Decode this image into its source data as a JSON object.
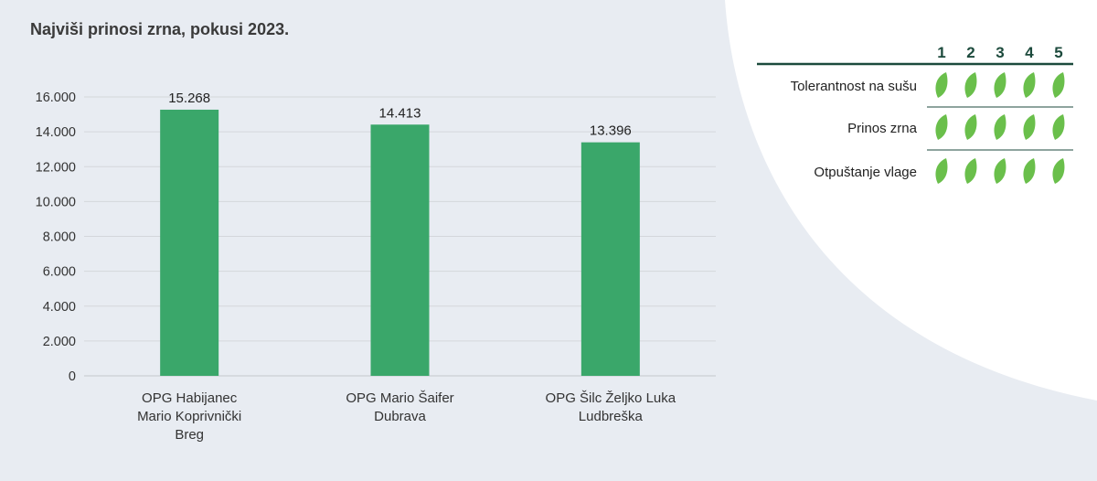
{
  "chart_data": {
    "type": "bar",
    "title": "Najviši prinosi zrna, pokusi 2023.",
    "categories": [
      [
        "OPG Habijanec",
        "Mario Koprivnički",
        "Breg"
      ],
      [
        "OPG Mario Šaifer",
        "Dubrava"
      ],
      [
        "OPG Šilc Željko Luka",
        "Ludbreška"
      ]
    ],
    "values": [
      15268,
      14413,
      13396
    ],
    "value_labels": [
      "15.268",
      "14.413",
      "13.396"
    ],
    "yticks": [
      0,
      2000,
      4000,
      6000,
      8000,
      10000,
      12000,
      14000,
      16000
    ],
    "ytick_labels": [
      "0",
      "2.000",
      "4.000",
      "6.000",
      "8.000",
      "10.000",
      "12.000",
      "14.000",
      "16.000"
    ],
    "ylim": [
      0,
      16000
    ],
    "grid": true,
    "bar_color": "#3aa76a"
  },
  "rating_table": {
    "columns": [
      "1",
      "2",
      "3",
      "4",
      "5"
    ],
    "rows": [
      {
        "label": "Tolerantnost na sušu",
        "rating": 5
      },
      {
        "label": "Prinos zrna",
        "rating": 5
      },
      {
        "label": "Otpuštanje vlage",
        "rating": 5
      }
    ],
    "icon": "leaf-icon",
    "icon_color": "#6abf4b",
    "line_color": "#1c4a3c",
    "header_color": "#1c4a3c"
  }
}
